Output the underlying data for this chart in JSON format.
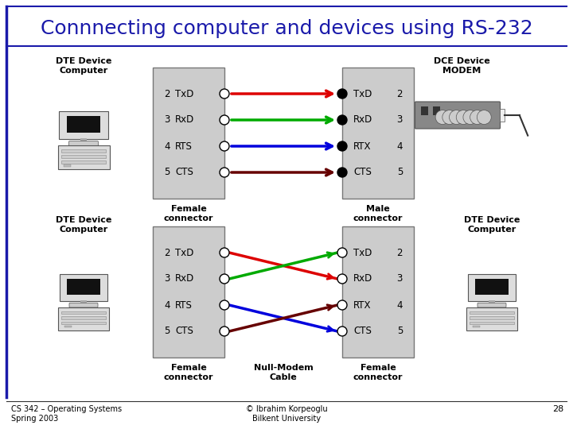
{
  "title": "Connnecting computer and devices using RS-232",
  "title_fontsize": 18,
  "title_color": "#1a1aaa",
  "bg_color": "#ffffff",
  "top_section": {
    "dte_label": "DTE Device\nComputer",
    "dce_label": "DCE Device\nMODEM",
    "female_label": "Female\nconnector",
    "male_label": "Male\nconnector",
    "pins": [
      "2",
      "3",
      "4",
      "5"
    ],
    "pin_labels_left": [
      "TxD",
      "RxD",
      "RTS",
      "CTS"
    ],
    "pin_labels_right": [
      "TxD",
      "RxD",
      "RTX",
      "CTS"
    ],
    "line_colors": [
      "#dd0000",
      "#00aa00",
      "#0000dd",
      "#660000"
    ]
  },
  "bottom_section": {
    "dte_label_left": "DTE Device\nComputer",
    "dte_label_right": "DTE Device\nComputer",
    "female_label_left": "Female\nconnector",
    "female_label_right": "Female\nconnector",
    "null_modem_label": "Null-Modem\nCable",
    "pins": [
      "2",
      "3",
      "4",
      "5"
    ],
    "pin_labels_left": [
      "TxD",
      "RxD",
      "RTS",
      "CTS"
    ],
    "pin_labels_right": [
      "TxD",
      "RxD",
      "RTX",
      "CTS"
    ],
    "line_colors": [
      "#dd0000",
      "#00aa00",
      "#0000dd",
      "#660000"
    ]
  },
  "footer_left": "CS 342 – Operating Systems\nSpring 2003",
  "footer_right": "© Ibrahim Korpeoglu\nBilkent University",
  "footer_page": "28"
}
